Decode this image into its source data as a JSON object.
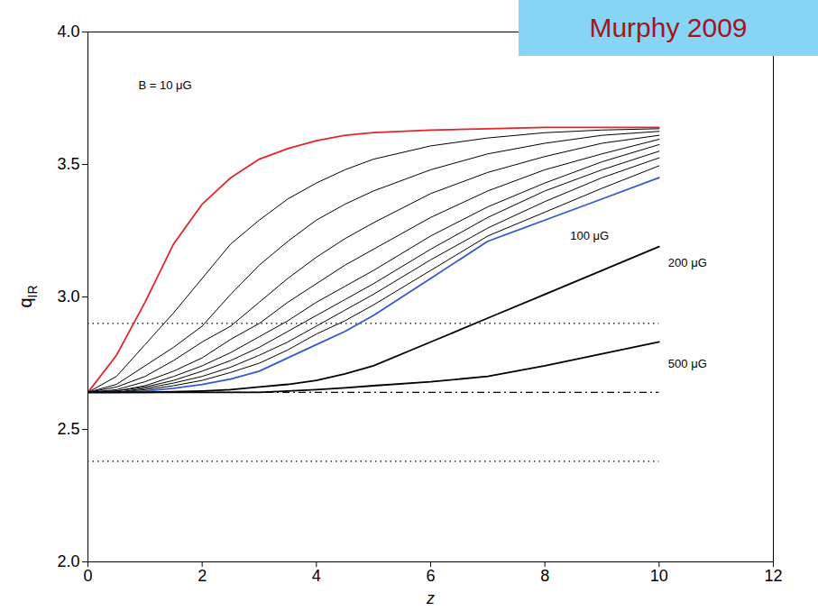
{
  "chart_data": {
    "type": "line",
    "title": "Murphy 2009",
    "x_label": "z",
    "y_label": "qIR",
    "xlim": [
      0,
      12
    ],
    "ylim": [
      2,
      4
    ],
    "xticks": [
      0,
      2,
      4,
      6,
      8,
      10,
      12
    ],
    "yticks": [
      {
        "value": 2,
        "label": "2.0"
      },
      {
        "value": 2.5,
        "label": "2.5"
      },
      {
        "value": 3,
        "label": "3.0"
      },
      {
        "value": 3.5,
        "label": "3.5"
      },
      {
        "value": 4,
        "label": "4.0"
      }
    ],
    "grid": false,
    "x": [
      0,
      0.5,
      1,
      1.5,
      2,
      2.5,
      3,
      3.5,
      4,
      4.5,
      5,
      6,
      7,
      8,
      9,
      10
    ],
    "series": [
      {
        "name": "B = 10 μG",
        "color": "#e3242b",
        "values": [
          2.64,
          2.78,
          2.98,
          3.2,
          3.35,
          3.45,
          3.52,
          3.56,
          3.59,
          3.61,
          3.62,
          3.63,
          3.635,
          3.64,
          3.64,
          3.64
        ]
      },
      {
        "color": "#000000",
        "values": [
          2.64,
          2.7,
          2.82,
          2.94,
          3.07,
          3.2,
          3.29,
          3.37,
          3.43,
          3.48,
          3.52,
          3.57,
          3.6,
          3.62,
          3.63,
          3.635
        ]
      },
      {
        "color": "#000000",
        "values": [
          2.64,
          2.67,
          2.74,
          2.81,
          2.89,
          3.01,
          3.12,
          3.21,
          3.29,
          3.35,
          3.4,
          3.48,
          3.54,
          3.58,
          3.61,
          3.625
        ]
      },
      {
        "color": "#000000",
        "values": [
          2.64,
          2.66,
          2.7,
          2.76,
          2.83,
          2.89,
          2.98,
          3.07,
          3.15,
          3.22,
          3.28,
          3.39,
          3.47,
          3.53,
          3.58,
          3.61
        ]
      },
      {
        "color": "#000000",
        "values": [
          2.64,
          2.65,
          2.68,
          2.72,
          2.77,
          2.84,
          2.9,
          2.98,
          3.05,
          3.12,
          3.18,
          3.3,
          3.4,
          3.48,
          3.54,
          3.595
        ]
      },
      {
        "color": "#000000",
        "values": [
          2.64,
          2.645,
          2.665,
          2.7,
          2.74,
          2.79,
          2.85,
          2.91,
          2.98,
          3.04,
          3.1,
          3.23,
          3.34,
          3.43,
          3.51,
          3.575
        ]
      },
      {
        "color": "#000000",
        "values": [
          2.64,
          2.645,
          2.66,
          2.685,
          2.72,
          2.76,
          2.81,
          2.87,
          2.93,
          2.99,
          3.05,
          3.18,
          3.3,
          3.4,
          3.48,
          3.55
        ]
      },
      {
        "color": "#000000",
        "values": [
          2.64,
          2.64,
          2.655,
          2.675,
          2.7,
          2.735,
          2.78,
          2.83,
          2.89,
          2.95,
          3.01,
          3.14,
          3.26,
          3.36,
          3.45,
          3.525
        ]
      },
      {
        "color": "#000000",
        "values": [
          2.64,
          2.64,
          2.65,
          2.665,
          2.685,
          2.715,
          2.75,
          2.8,
          2.86,
          2.91,
          2.97,
          3.1,
          3.23,
          3.32,
          3.41,
          3.495
        ]
      },
      {
        "name": "100 μG",
        "color": "#3557d4",
        "values": [
          2.64,
          2.64,
          2.645,
          2.655,
          2.67,
          2.69,
          2.72,
          2.77,
          2.82,
          2.87,
          2.93,
          3.07,
          3.21,
          3.29,
          3.37,
          3.45
        ]
      },
      {
        "name": "200 μG",
        "color": "#000000",
        "values": [
          2.64,
          2.64,
          2.64,
          2.642,
          2.645,
          2.65,
          2.66,
          2.67,
          2.685,
          2.71,
          2.74,
          2.83,
          2.92,
          3.01,
          3.1,
          3.19
        ]
      },
      {
        "name": "500 μG",
        "color": "#000000",
        "values": [
          2.64,
          2.64,
          2.64,
          2.64,
          2.64,
          2.64,
          2.64,
          2.645,
          2.65,
          2.657,
          2.665,
          2.68,
          2.7,
          2.74,
          2.785,
          2.83
        ]
      }
    ],
    "hlines": [
      {
        "y": 2.9,
        "xmin": 0,
        "xmax": 10,
        "line_style": "dotted"
      },
      {
        "y": 2.38,
        "xmin": 0,
        "xmax": 10,
        "line_style": "dotted"
      },
      {
        "y": 2.64,
        "xmin": 0,
        "xmax": 10,
        "line_style": "dashdot"
      }
    ]
  }
}
